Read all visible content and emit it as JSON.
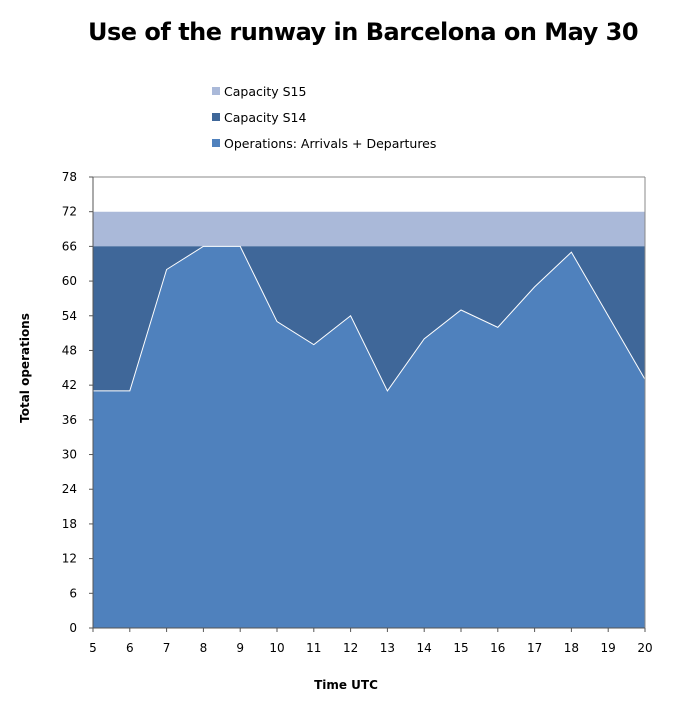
{
  "chart_data": {
    "type": "area",
    "title": "Use of the runway in Barcelona on May 30",
    "xlabel": "Time UTC",
    "ylabel": "Total operations",
    "x": [
      5,
      6,
      7,
      8,
      9,
      10,
      11,
      12,
      13,
      14,
      15,
      16,
      17,
      18,
      19,
      20
    ],
    "ylim": [
      0,
      78
    ],
    "yticks": [
      0,
      6,
      12,
      18,
      24,
      30,
      36,
      42,
      48,
      54,
      60,
      66,
      72,
      78
    ],
    "grid": false,
    "legend_position": "top",
    "series": [
      {
        "name": "Capacity S15",
        "color": "#AAB9D9",
        "values": [
          72,
          72,
          72,
          72,
          72,
          72,
          72,
          72,
          72,
          72,
          72,
          72,
          72,
          72,
          72,
          72
        ]
      },
      {
        "name": "Capacity S14",
        "color": "#3F6799",
        "values": [
          66,
          66,
          66,
          66,
          66,
          66,
          66,
          66,
          66,
          66,
          66,
          66,
          66,
          66,
          66,
          66
        ]
      },
      {
        "name": "Operations: Arrivals + Departures",
        "color": "#4F81BD",
        "values": [
          41,
          41,
          62,
          66,
          66,
          53,
          49,
          54,
          41,
          50,
          55,
          52,
          59,
          65,
          54,
          43
        ]
      }
    ]
  }
}
